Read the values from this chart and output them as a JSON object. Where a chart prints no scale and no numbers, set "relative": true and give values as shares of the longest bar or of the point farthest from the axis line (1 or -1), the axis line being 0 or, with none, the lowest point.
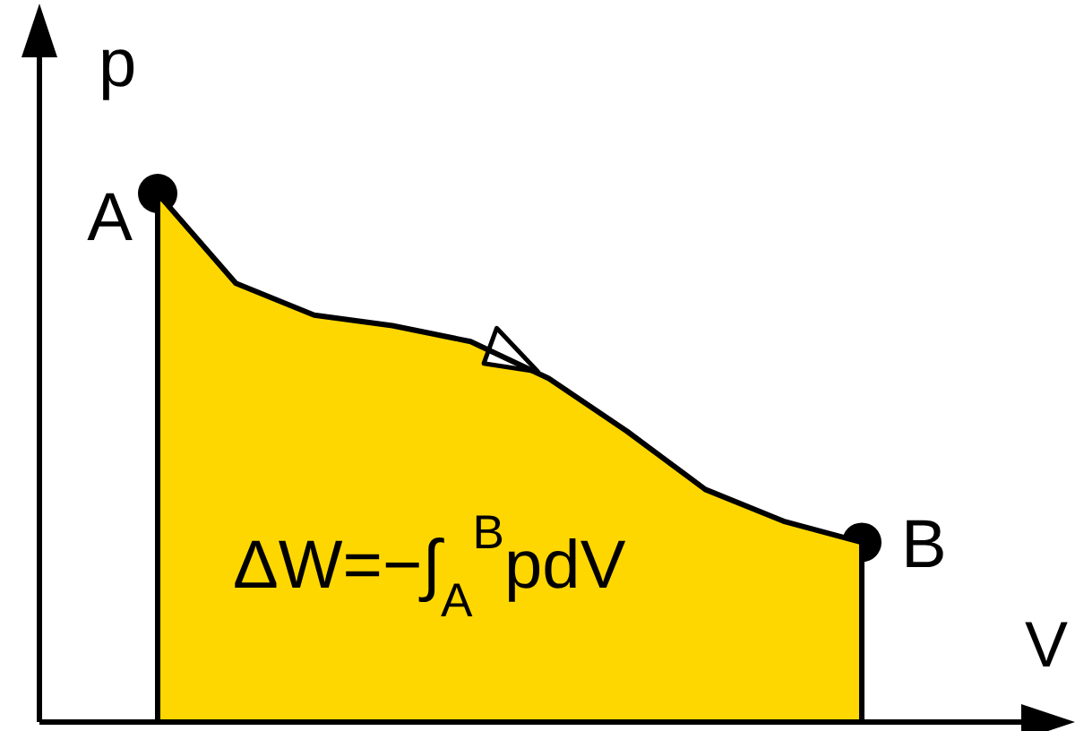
{
  "chart_data": {
    "type": "area",
    "relative": true,
    "xlabel": "V",
    "ylabel": "p",
    "categories": [
      null,
      null,
      null,
      null,
      null,
      null,
      null,
      null,
      null,
      null
    ],
    "series": [
      {
        "color": "#ffd700",
        "values": [
          1,
          0.83,
          0.77,
          0.75,
          0.72,
          0.65,
          0.55,
          0.44,
          0.38,
          0.34
        ]
      }
    ],
    "annotations": [
      "A",
      "B",
      "ΔW=−∫$_{A}$$^{B}$pdV"
    ]
  }
}
